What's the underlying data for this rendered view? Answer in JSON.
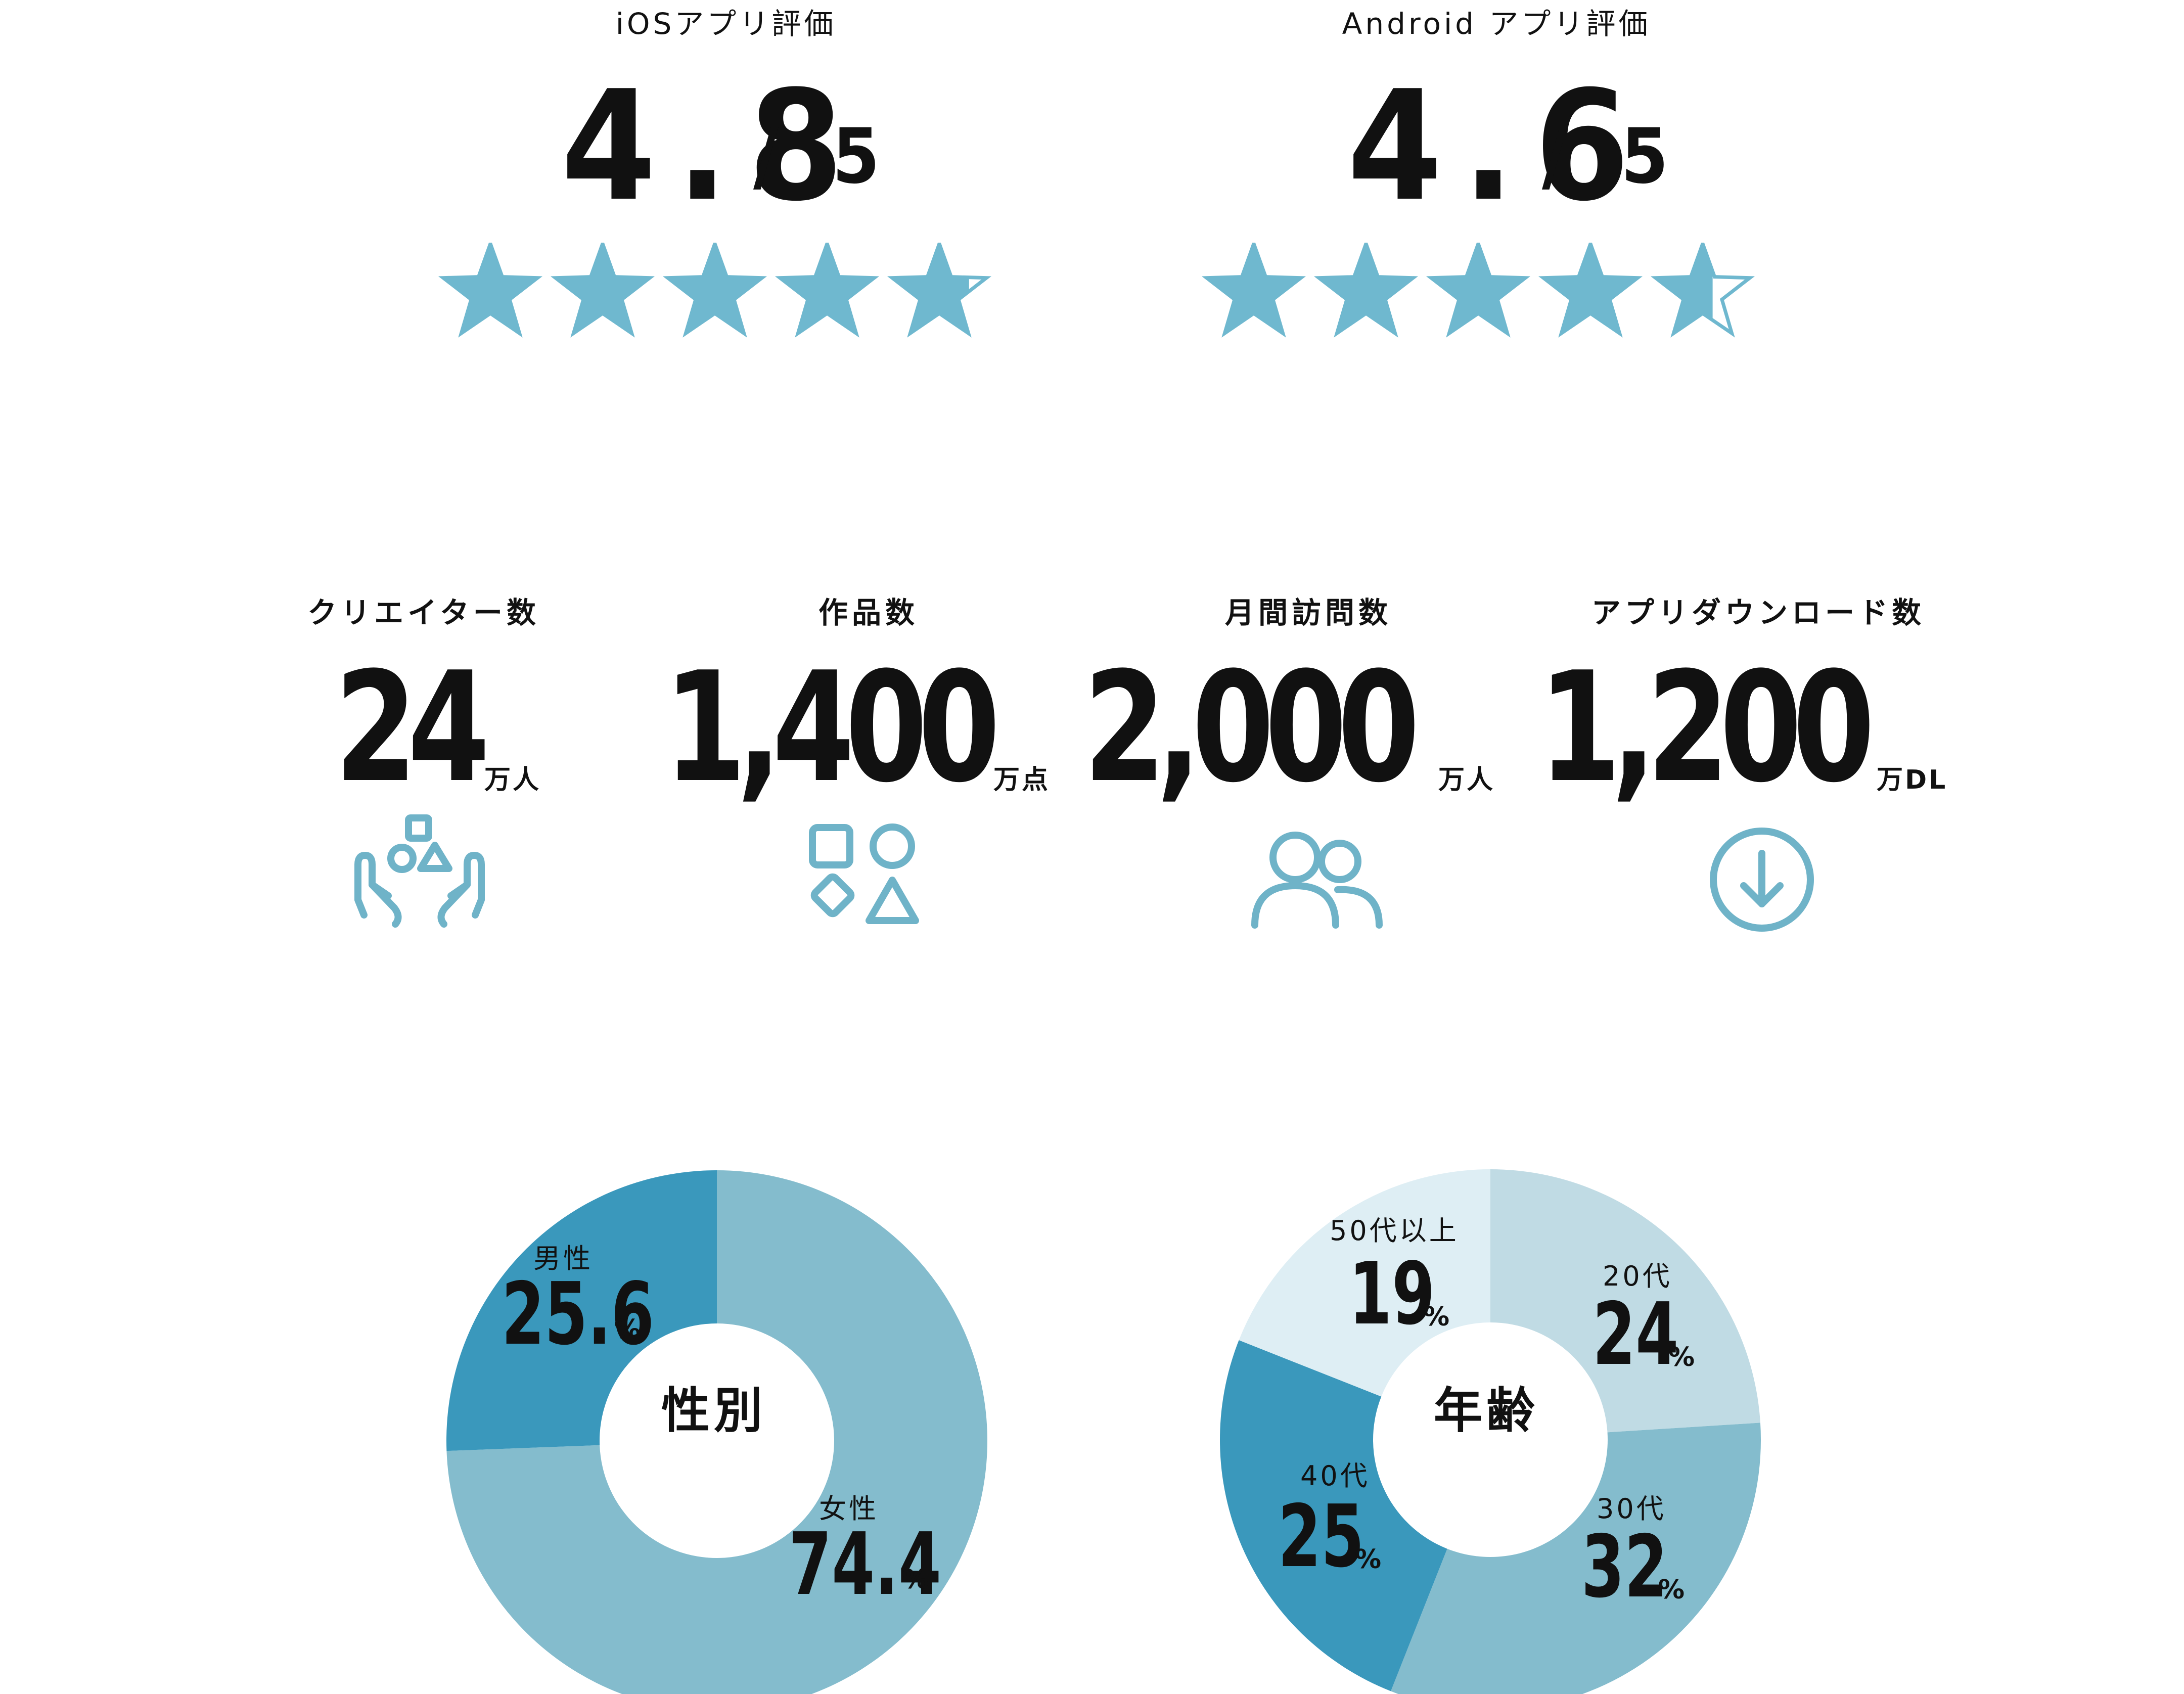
{
  "ratings": [
    {
      "label": "iOSアプリ評価",
      "value": "4.8",
      "max": "/ 5",
      "score": 4.8
    },
    {
      "label": "Android アプリ評価",
      "value": "4.6",
      "max": "/ 5",
      "score": 4.6
    }
  ],
  "stats": [
    {
      "label": "クリエイター数",
      "value": "24",
      "unit": "万人",
      "icon": "creator-hands-shapes-icon"
    },
    {
      "label": "作品数",
      "value": "1,400",
      "unit": "万点",
      "icon": "shapes-icon"
    },
    {
      "label": "月間訪問数",
      "value": "2,000",
      "unit": "万人",
      "icon": "users-icon"
    },
    {
      "label": "アプリダウンロード数",
      "value": "1,200",
      "unit": "万DL",
      "icon": "download-icon"
    }
  ],
  "colors": {
    "star": "#6fb8cf",
    "icon": "#6fb3c8",
    "dark_blue": "#3a98bc",
    "mid_blue": "#84bccd",
    "light_blue": "#c0dbe4",
    "pale_blue": "#deeef4"
  },
  "chart_data": [
    {
      "type": "pie",
      "title": "性別",
      "categories": [
        "女性",
        "男性"
      ],
      "values": [
        74.4,
        25.6
      ],
      "value_labels": [
        "74.4",
        "25.6"
      ],
      "unit": "%",
      "colors": [
        "#84bccd",
        "#3a98bc"
      ]
    },
    {
      "type": "pie",
      "title": "年齢",
      "categories": [
        "20代",
        "30代",
        "40代",
        "50代以上"
      ],
      "values": [
        24,
        32,
        25,
        19
      ],
      "value_labels": [
        "24",
        "32",
        "25",
        "19"
      ],
      "unit": "%",
      "colors": [
        "#c0dbe4",
        "#84bccd",
        "#3a98bc",
        "#deeef4"
      ]
    }
  ]
}
